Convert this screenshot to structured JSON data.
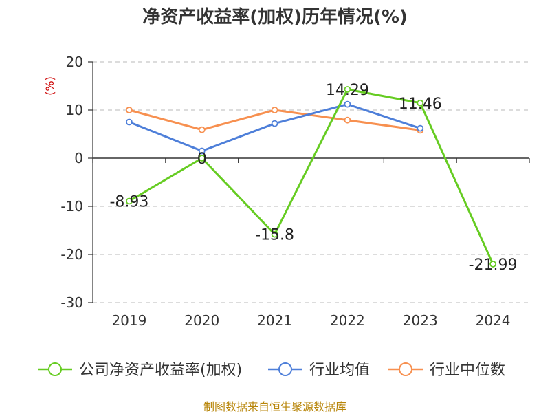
{
  "chart_data": {
    "type": "line",
    "title": "净资产收益率(加权)历年情况(%)",
    "unit_label": "(%)",
    "categories": [
      "2019",
      "2020",
      "2021",
      "2022",
      "2023",
      "2024"
    ],
    "ylim": [
      -30,
      20
    ],
    "yticks": [
      "20",
      "10",
      "0",
      "-10",
      "-20",
      "-30"
    ],
    "ytick_values": [
      20,
      10,
      0,
      -10,
      -20,
      -30
    ],
    "grid": true,
    "legend_position": "bottom",
    "series": [
      {
        "name": "公司净资产收益率(加权)",
        "color": "#66cc22",
        "values": [
          -8.93,
          0,
          -15.8,
          14.29,
          11.46,
          -21.99
        ],
        "labels": [
          "-8.93",
          "0",
          "-15.8",
          "14.29",
          "11.46",
          "-21.99"
        ]
      },
      {
        "name": "行业均值",
        "color": "#4e7fd9",
        "values": [
          7.5,
          1.5,
          7.2,
          11.2,
          6.2,
          null
        ]
      },
      {
        "name": "行业中位数",
        "color": "#f79050",
        "values": [
          10.0,
          5.9,
          10.0,
          7.9,
          5.8,
          null
        ]
      }
    ]
  },
  "source": "制图数据来自恒生聚源数据库"
}
